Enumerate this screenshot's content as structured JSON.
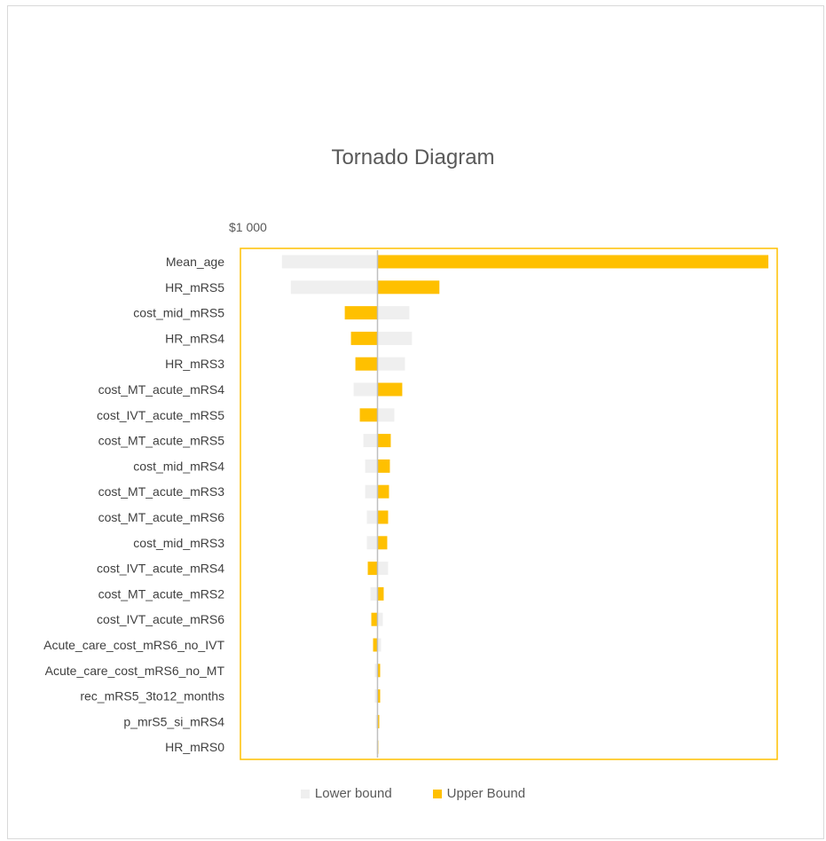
{
  "chart_data": {
    "type": "bar",
    "orientation": "horizontal",
    "variant": "tornado",
    "title": "Tornado Diagram",
    "base_value_label": "$1 000",
    "categories": [
      "Mean_age",
      "HR_mRS5",
      "cost_mid_mRS5",
      "HR_mRS4",
      "HR_mRS3",
      "cost_MT_acute_mRS4",
      "cost_IVT_acute_mRS5",
      "cost_MT_acute_mRS5",
      "cost_mid_mRS4",
      "cost_MT_acute_mRS3",
      "cost_MT_acute_mRS6",
      "cost_mid_mRS3",
      "cost_IVT_acute_mRS4",
      "cost_MT_acute_mRS2",
      "cost_IVT_acute_mRS6",
      "Acute_care_cost_mRS6_no_IVT",
      "Acute_care_cost_mRS6_no_MT",
      "rec_mRS5_3to12_months",
      "p_mrS5_si_mRS4",
      "HR_mRS0"
    ],
    "series": [
      {
        "name": "Lower bound",
        "color": "#efefef",
        "values": [
          -108,
          -98,
          36,
          39,
          31,
          -27,
          19,
          -16,
          -14,
          -14,
          -12,
          -12,
          12,
          -8,
          6,
          4,
          -3,
          -3,
          -2,
          -1
        ]
      },
      {
        "name": "Upper Bound",
        "color": "#ffc000",
        "values": [
          442,
          70,
          -37,
          -30,
          -25,
          28,
          -20,
          15,
          14,
          13,
          12,
          11,
          -11,
          7,
          -7,
          -5,
          3,
          3,
          2,
          1
        ]
      }
    ],
    "x_range": [
      -155,
      452
    ],
    "grid": false,
    "legend_position": "bottom",
    "plot_border_color": "#ffc000",
    "axis_line_color": "#bfbfbf"
  }
}
